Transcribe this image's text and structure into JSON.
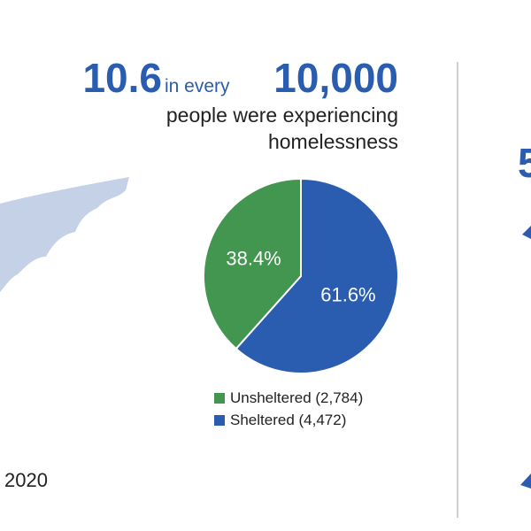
{
  "header": {
    "big_number": "10.6",
    "connector": "in every",
    "base_number": "10,000",
    "line2": "people were experiencing",
    "line3": "homelessness"
  },
  "left_caption": "2020",
  "right_fragment": "5",
  "chart_data": {
    "type": "pie",
    "categories": [
      "Unsheltered (2,784)",
      "Sheltered (4,472)"
    ],
    "values": [
      38.4,
      61.6
    ],
    "value_labels": [
      "38.4%",
      "61.6%"
    ],
    "colors": [
      "#43964f",
      "#2a5db0"
    ],
    "legend": "bottom"
  }
}
